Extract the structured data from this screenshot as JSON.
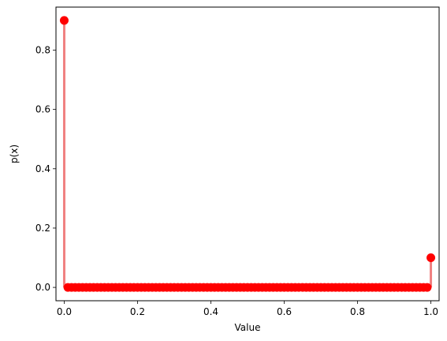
{
  "chart_data": {
    "type": "stem",
    "xlabel": "Value",
    "ylabel": "p(x)",
    "xlim": [
      -0.0225,
      1.0225
    ],
    "ylim": [
      -0.045,
      0.945
    ],
    "x_ticks": [
      0.0,
      0.2,
      0.4,
      0.6,
      0.8,
      1.0
    ],
    "x_tick_labels": [
      "0.0",
      "0.2",
      "0.4",
      "0.6",
      "0.8",
      "1.0"
    ],
    "y_ticks": [
      0.0,
      0.2,
      0.4,
      0.6,
      0.8
    ],
    "y_tick_labels": [
      "0.0",
      "0.2",
      "0.4",
      "0.6",
      "0.8"
    ],
    "grid": false,
    "marker_color": "#ff0000",
    "stem_color": "#f08080",
    "series": [
      {
        "x": [
          0.0,
          0.01,
          0.02,
          0.03,
          0.04,
          0.05,
          0.06,
          0.07,
          0.08,
          0.09,
          0.1,
          0.11,
          0.12,
          0.13,
          0.14,
          0.15,
          0.16,
          0.17,
          0.18,
          0.19,
          0.2,
          0.21,
          0.22,
          0.23,
          0.24,
          0.25,
          0.26,
          0.27,
          0.28,
          0.29,
          0.3,
          0.31,
          0.32,
          0.33,
          0.34,
          0.35,
          0.36,
          0.37,
          0.38,
          0.39,
          0.4,
          0.41,
          0.42,
          0.43,
          0.44,
          0.45,
          0.46,
          0.47,
          0.48,
          0.49,
          0.5,
          0.51,
          0.52,
          0.53,
          0.54,
          0.55,
          0.56,
          0.57,
          0.58,
          0.59,
          0.6,
          0.61,
          0.62,
          0.63,
          0.64,
          0.65,
          0.66,
          0.67,
          0.68,
          0.69,
          0.7,
          0.71,
          0.72,
          0.73,
          0.74,
          0.75,
          0.76,
          0.77,
          0.78,
          0.79,
          0.8,
          0.81,
          0.82,
          0.83,
          0.84,
          0.85,
          0.86,
          0.87,
          0.88,
          0.89,
          0.9,
          0.91,
          0.92,
          0.93,
          0.94,
          0.95,
          0.96,
          0.97,
          0.98,
          0.99,
          1.0
        ],
        "y": [
          0.9,
          0,
          0,
          0,
          0,
          0,
          0,
          0,
          0,
          0,
          0,
          0,
          0,
          0,
          0,
          0,
          0,
          0,
          0,
          0,
          0,
          0,
          0,
          0,
          0,
          0,
          0,
          0,
          0,
          0,
          0,
          0,
          0,
          0,
          0,
          0,
          0,
          0,
          0,
          0,
          0,
          0,
          0,
          0,
          0,
          0,
          0,
          0,
          0,
          0,
          0,
          0,
          0,
          0,
          0,
          0,
          0,
          0,
          0,
          0,
          0,
          0,
          0,
          0,
          0,
          0,
          0,
          0,
          0,
          0,
          0,
          0,
          0,
          0,
          0,
          0,
          0,
          0,
          0,
          0,
          0,
          0,
          0,
          0,
          0,
          0,
          0,
          0,
          0,
          0,
          0,
          0,
          0,
          0,
          0,
          0,
          0,
          0,
          0,
          0,
          0.1
        ]
      }
    ]
  }
}
